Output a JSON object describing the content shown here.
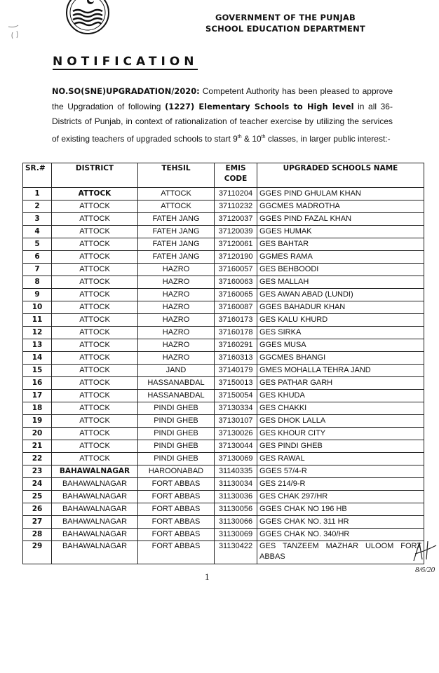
{
  "header": {
    "line1": "GOVERNMENT OF THE PUNJAB",
    "line2": "SCHOOL EDUCATION DEPARTMENT"
  },
  "logo_alt": "Government of the Punjab seal",
  "title": "NOTIFICATION",
  "para": {
    "ref": "NO.SO(SNE)UPGRADATION/2020:",
    "t1": " Competent Authority has been pleased to approve the Upgradation of following ",
    "bold": "(1227) Elementary Schools to High level",
    "t2": " in all 36-Districts of Punjab, in context of rationalization of teacher exercise by utilizing the services of existing teachers of upgraded schools to start 9",
    "sup1": "th",
    "t3": " & 10",
    "sup2": "th",
    "t4": " classes, in larger public interest:-"
  },
  "table": {
    "headers": [
      "SR.#",
      "DISTRICT",
      "TEHSIL",
      "EMIS CODE",
      "UPGRADED SCHOOLS NAME"
    ],
    "rows": [
      [
        "1",
        "ATTOCK",
        "ATTOCK",
        "37110204",
        "GGES PIND GHULAM KHAN"
      ],
      [
        "2",
        "ATTOCK",
        "ATTOCK",
        "37110232",
        "GGCMES MADROTHA"
      ],
      [
        "3",
        "ATTOCK",
        "FATEH JANG",
        "37120037",
        "GGES PIND FAZAL KHAN"
      ],
      [
        "4",
        "ATTOCK",
        "FATEH JANG",
        "37120039",
        "GGES HUMAK"
      ],
      [
        "5",
        "ATTOCK",
        "FATEH JANG",
        "37120061",
        "GES BAHTAR"
      ],
      [
        "6",
        "ATTOCK",
        "FATEH JANG",
        "37120190",
        "GGMES RAMA"
      ],
      [
        "7",
        "ATTOCK",
        "HAZRO",
        "37160057",
        "GES BEHBOODI"
      ],
      [
        "8",
        "ATTOCK",
        "HAZRO",
        "37160063",
        "GES MALLAH"
      ],
      [
        "9",
        "ATTOCK",
        "HAZRO",
        "37160065",
        "GES AWAN ABAD (LUNDI)"
      ],
      [
        "10",
        "ATTOCK",
        "HAZRO",
        "37160087",
        "GGES BAHADUR KHAN"
      ],
      [
        "11",
        "ATTOCK",
        "HAZRO",
        "37160173",
        "GES KALU KHURD"
      ],
      [
        "12",
        "ATTOCK",
        "HAZRO",
        "37160178",
        "GES SIRKA"
      ],
      [
        "13",
        "ATTOCK",
        "HAZRO",
        "37160291",
        "GGES MUSA"
      ],
      [
        "14",
        "ATTOCK",
        "HAZRO",
        "37160313",
        "GGCMES BHANGI"
      ],
      [
        "15",
        "ATTOCK",
        "JAND",
        "37140179",
        "GMES MOHALLA TEHRA JAND"
      ],
      [
        "16",
        "ATTOCK",
        "HASSANABDAL",
        "37150013",
        "GES PATHAR GARH"
      ],
      [
        "17",
        "ATTOCK",
        "HASSANABDAL",
        "37150054",
        "GES KHUDA"
      ],
      [
        "18",
        "ATTOCK",
        "PINDI GHEB",
        "37130334",
        "GES CHAKKI"
      ],
      [
        "19",
        "ATTOCK",
        "PINDI GHEB",
        "37130107",
        "GES DHOK LALLA"
      ],
      [
        "20",
        "ATTOCK",
        "PINDI GHEB",
        "37130026",
        "GES KHOUR CITY"
      ],
      [
        "21",
        "ATTOCK",
        "PINDI GHEB",
        "37130044",
        "GES PINDI GHEB"
      ],
      [
        "22",
        "ATTOCK",
        "PINDI GHEB",
        "37130069",
        "GES RAWAL"
      ],
      [
        "23",
        "BAHAWALNAGAR",
        "HAROONABAD",
        "31140335",
        "GGES 57/4-R"
      ],
      [
        "24",
        "BAHAWALNAGAR",
        "FORT ABBAS",
        "31130034",
        "GES 214/9-R"
      ],
      [
        "25",
        "BAHAWALNAGAR",
        "FORT ABBAS",
        "31130036",
        "GES CHAK 297/HR"
      ],
      [
        "26",
        "BAHAWALNAGAR",
        "FORT ABBAS",
        "31130056",
        "GGES CHAK NO 196 HB"
      ],
      [
        "27",
        "BAHAWALNAGAR",
        "FORT ABBAS",
        "31130066",
        "GGES CHAK NO. 311 HR"
      ],
      [
        "28",
        "BAHAWALNAGAR",
        "FORT ABBAS",
        "31130069",
        "GGES CHAK NO. 340/HR"
      ],
      [
        "29",
        "BAHAWALNAGAR",
        "FORT ABBAS",
        "31130422",
        "GES TANZEEM MAZHAR ULOOM FORT ABBAS"
      ]
    ],
    "bold_district_rows": [
      1,
      23
    ]
  },
  "page_number": "1",
  "signature_date": "8/6/20"
}
